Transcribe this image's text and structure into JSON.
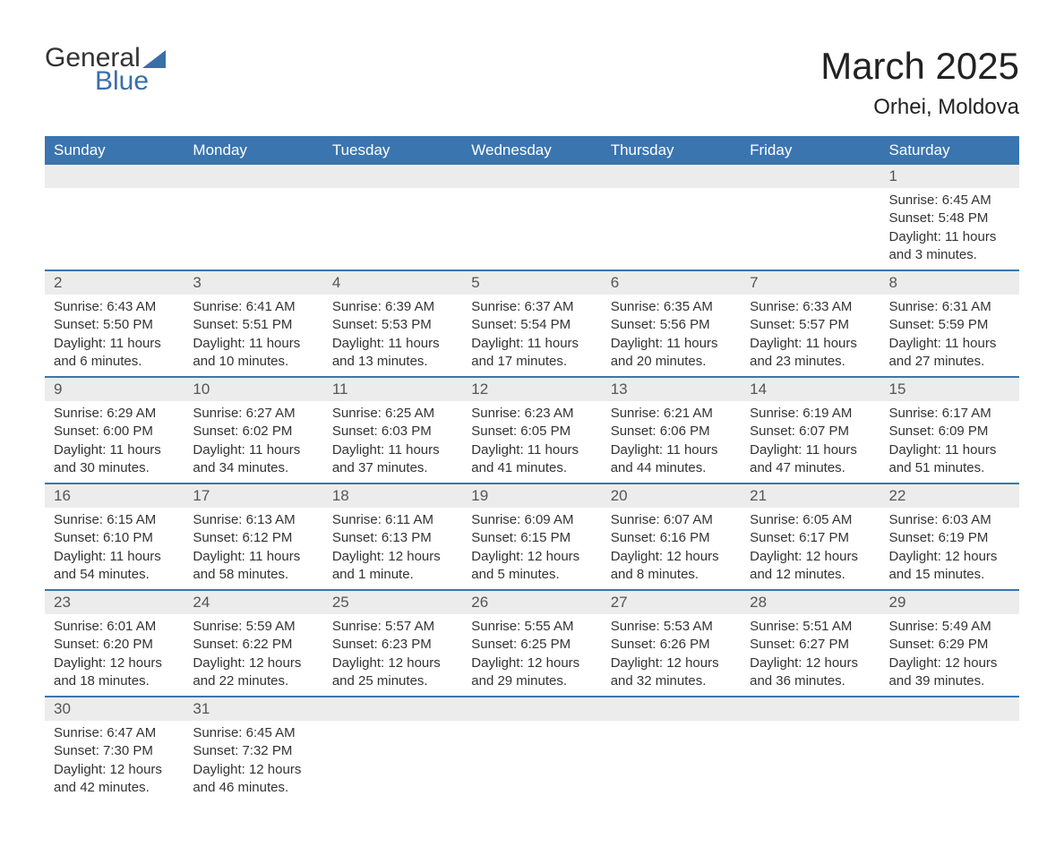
{
  "logo": {
    "word1": "General",
    "word2": "Blue"
  },
  "title": {
    "month_year": "March 2025",
    "location": "Orhei, Moldova"
  },
  "colors": {
    "header_bg": "#3a75b0",
    "header_text": "#ffffff",
    "row_divider": "#3a75b0",
    "daynum_bg": "#ececec",
    "text_primary": "#333333",
    "text_muted": "#555555",
    "logo_blue": "#3a6ea8",
    "page_bg": "#ffffff"
  },
  "typography": {
    "title_fontsize_pt": 32,
    "location_fontsize_pt": 18,
    "header_fontsize_pt": 13,
    "body_fontsize_pt": 11
  },
  "day_headers": [
    "Sunday",
    "Monday",
    "Tuesday",
    "Wednesday",
    "Thursday",
    "Friday",
    "Saturday"
  ],
  "weeks": [
    [
      null,
      null,
      null,
      null,
      null,
      null,
      {
        "n": "1",
        "sunrise": "6:45 AM",
        "sunset": "5:48 PM",
        "daylight": "11 hours and 3 minutes."
      }
    ],
    [
      {
        "n": "2",
        "sunrise": "6:43 AM",
        "sunset": "5:50 PM",
        "daylight": "11 hours and 6 minutes."
      },
      {
        "n": "3",
        "sunrise": "6:41 AM",
        "sunset": "5:51 PM",
        "daylight": "11 hours and 10 minutes."
      },
      {
        "n": "4",
        "sunrise": "6:39 AM",
        "sunset": "5:53 PM",
        "daylight": "11 hours and 13 minutes."
      },
      {
        "n": "5",
        "sunrise": "6:37 AM",
        "sunset": "5:54 PM",
        "daylight": "11 hours and 17 minutes."
      },
      {
        "n": "6",
        "sunrise": "6:35 AM",
        "sunset": "5:56 PM",
        "daylight": "11 hours and 20 minutes."
      },
      {
        "n": "7",
        "sunrise": "6:33 AM",
        "sunset": "5:57 PM",
        "daylight": "11 hours and 23 minutes."
      },
      {
        "n": "8",
        "sunrise": "6:31 AM",
        "sunset": "5:59 PM",
        "daylight": "11 hours and 27 minutes."
      }
    ],
    [
      {
        "n": "9",
        "sunrise": "6:29 AM",
        "sunset": "6:00 PM",
        "daylight": "11 hours and 30 minutes."
      },
      {
        "n": "10",
        "sunrise": "6:27 AM",
        "sunset": "6:02 PM",
        "daylight": "11 hours and 34 minutes."
      },
      {
        "n": "11",
        "sunrise": "6:25 AM",
        "sunset": "6:03 PM",
        "daylight": "11 hours and 37 minutes."
      },
      {
        "n": "12",
        "sunrise": "6:23 AM",
        "sunset": "6:05 PM",
        "daylight": "11 hours and 41 minutes."
      },
      {
        "n": "13",
        "sunrise": "6:21 AM",
        "sunset": "6:06 PM",
        "daylight": "11 hours and 44 minutes."
      },
      {
        "n": "14",
        "sunrise": "6:19 AM",
        "sunset": "6:07 PM",
        "daylight": "11 hours and 47 minutes."
      },
      {
        "n": "15",
        "sunrise": "6:17 AM",
        "sunset": "6:09 PM",
        "daylight": "11 hours and 51 minutes."
      }
    ],
    [
      {
        "n": "16",
        "sunrise": "6:15 AM",
        "sunset": "6:10 PM",
        "daylight": "11 hours and 54 minutes."
      },
      {
        "n": "17",
        "sunrise": "6:13 AM",
        "sunset": "6:12 PM",
        "daylight": "11 hours and 58 minutes."
      },
      {
        "n": "18",
        "sunrise": "6:11 AM",
        "sunset": "6:13 PM",
        "daylight": "12 hours and 1 minute."
      },
      {
        "n": "19",
        "sunrise": "6:09 AM",
        "sunset": "6:15 PM",
        "daylight": "12 hours and 5 minutes."
      },
      {
        "n": "20",
        "sunrise": "6:07 AM",
        "sunset": "6:16 PM",
        "daylight": "12 hours and 8 minutes."
      },
      {
        "n": "21",
        "sunrise": "6:05 AM",
        "sunset": "6:17 PM",
        "daylight": "12 hours and 12 minutes."
      },
      {
        "n": "22",
        "sunrise": "6:03 AM",
        "sunset": "6:19 PM",
        "daylight": "12 hours and 15 minutes."
      }
    ],
    [
      {
        "n": "23",
        "sunrise": "6:01 AM",
        "sunset": "6:20 PM",
        "daylight": "12 hours and 18 minutes."
      },
      {
        "n": "24",
        "sunrise": "5:59 AM",
        "sunset": "6:22 PM",
        "daylight": "12 hours and 22 minutes."
      },
      {
        "n": "25",
        "sunrise": "5:57 AM",
        "sunset": "6:23 PM",
        "daylight": "12 hours and 25 minutes."
      },
      {
        "n": "26",
        "sunrise": "5:55 AM",
        "sunset": "6:25 PM",
        "daylight": "12 hours and 29 minutes."
      },
      {
        "n": "27",
        "sunrise": "5:53 AM",
        "sunset": "6:26 PM",
        "daylight": "12 hours and 32 minutes."
      },
      {
        "n": "28",
        "sunrise": "5:51 AM",
        "sunset": "6:27 PM",
        "daylight": "12 hours and 36 minutes."
      },
      {
        "n": "29",
        "sunrise": "5:49 AM",
        "sunset": "6:29 PM",
        "daylight": "12 hours and 39 minutes."
      }
    ],
    [
      {
        "n": "30",
        "sunrise": "6:47 AM",
        "sunset": "7:30 PM",
        "daylight": "12 hours and 42 minutes."
      },
      {
        "n": "31",
        "sunrise": "6:45 AM",
        "sunset": "7:32 PM",
        "daylight": "12 hours and 46 minutes."
      },
      null,
      null,
      null,
      null,
      null
    ]
  ],
  "labels": {
    "sunrise": "Sunrise: ",
    "sunset": "Sunset: ",
    "daylight": "Daylight: "
  }
}
